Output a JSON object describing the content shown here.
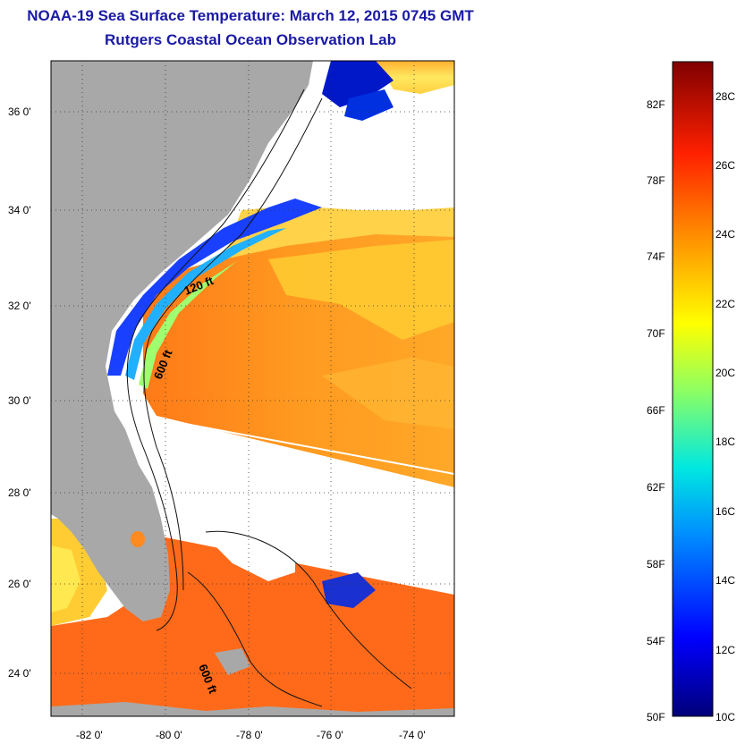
{
  "header": {
    "title": "NOAA-19 Sea Surface Temperature:  March 12, 2015 0745 GMT",
    "subtitle": "Rutgers Coastal Ocean Observation Lab"
  },
  "map": {
    "lat_labels": [
      "36 0'",
      "34 0'",
      "32 0'",
      "30 0'",
      "28 0'",
      "26 0'",
      "24 0'"
    ],
    "lon_labels": [
      "-82 0'",
      "-80 0'",
      "-78 0'",
      "-76 0'",
      "-74 0'"
    ],
    "contours": [
      "120 ft",
      "600 ft",
      "600 ft"
    ],
    "colors": {
      "land": "#a8a8a8",
      "cloud": "#ffffff",
      "warm": "#ff6a1a",
      "cool": "#1a3cff"
    }
  },
  "colorbar": {
    "fahrenheit": [
      "82F",
      "78F",
      "74F",
      "70F",
      "66F",
      "62F",
      "58F",
      "54F",
      "50F"
    ],
    "celsius": [
      "28C",
      "26C",
      "24C",
      "22C",
      "20C",
      "18C",
      "16C",
      "14C",
      "12C",
      "10C"
    ]
  }
}
